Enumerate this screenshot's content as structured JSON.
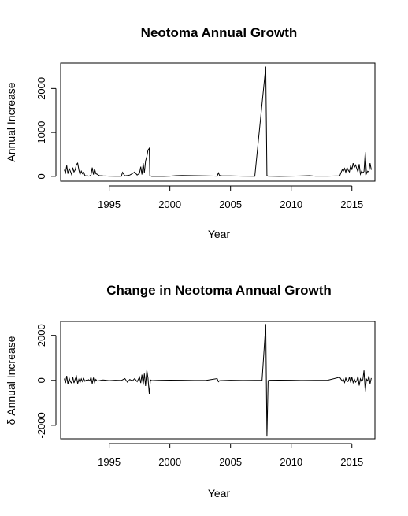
{
  "chart_data": [
    {
      "type": "line",
      "title": "Neotoma Annual Growth",
      "xlabel": "Year",
      "ylabel": "Annual Increase",
      "xlim": [
        1991,
        2016.9
      ],
      "ylim": [
        -110,
        2580
      ],
      "xticks": [
        1995,
        2000,
        2005,
        2010,
        2015
      ],
      "yticks": [
        0,
        1000,
        2000
      ],
      "grid": false,
      "series": [
        {
          "x": [
            1991.3,
            1991.4,
            1991.5,
            1991.6,
            1991.7,
            1991.8,
            1991.9,
            1992.0,
            1992.1,
            1992.2,
            1992.3,
            1992.4,
            1992.5,
            1992.6,
            1992.7,
            1992.8,
            1992.9,
            1993.0,
            1993.1,
            1993.2,
            1993.3,
            1993.4,
            1993.5,
            1993.6,
            1993.7,
            1993.8,
            1993.9,
            1994.0,
            1994.1,
            1994.2,
            1994.5,
            1995.0,
            1995.5,
            1996.0,
            1996.1,
            1996.3,
            1996.5,
            1996.7,
            1996.9,
            1997.1,
            1997.3,
            1997.5,
            1997.6,
            1997.7,
            1997.8,
            1997.9,
            1998.0,
            1998.1,
            1998.2,
            1998.3,
            1998.35,
            1998.5,
            1999.5,
            2000.0,
            2000.5,
            2001.0,
            2002.0,
            2003.0,
            2003.9,
            2004.0,
            2004.1,
            2004.3,
            2005.0,
            2006.0,
            2007.0,
            2007.9,
            2008.0,
            2008.1,
            2009.0,
            2010.0,
            2011.0,
            2011.5,
            2012.0,
            2013.0,
            2014.0,
            2014.2,
            2014.3,
            2014.4,
            2014.5,
            2014.6,
            2014.7,
            2014.8,
            2014.9,
            2015.0,
            2015.1,
            2015.2,
            2015.3,
            2015.4,
            2015.5,
            2015.6,
            2015.7,
            2015.8,
            2015.9,
            2016.0,
            2016.1,
            2016.2,
            2016.3,
            2016.4,
            2016.5,
            2016.6
          ],
          "y": [
            150,
            80,
            250,
            60,
            180,
            120,
            40,
            200,
            100,
            150,
            270,
            300,
            150,
            40,
            120,
            60,
            90,
            20,
            10,
            15,
            5,
            10,
            30,
            200,
            40,
            170,
            60,
            50,
            30,
            15,
            10,
            5,
            3,
            2,
            90,
            10,
            20,
            30,
            60,
            100,
            30,
            70,
            220,
            40,
            300,
            80,
            350,
            450,
            600,
            640,
            20,
            0,
            0,
            5,
            15,
            20,
            15,
            10,
            5,
            80,
            20,
            10,
            10,
            5,
            2,
            2500,
            20,
            5,
            0,
            5,
            10,
            15,
            5,
            5,
            10,
            150,
            120,
            180,
            90,
            200,
            140,
            100,
            250,
            150,
            300,
            200,
            260,
            180,
            100,
            280,
            50,
            120,
            80,
            110,
            550,
            60,
            120,
            100,
            300,
            150
          ]
        }
      ]
    },
    {
      "type": "line",
      "title": "Change in Neotoma Annual Growth",
      "xlabel": "Year",
      "ylabel": "δ Annual Increase",
      "xlim": [
        1991,
        2016.9
      ],
      "ylim": [
        -2600,
        2620
      ],
      "xticks": [
        1995,
        2000,
        2005,
        2010,
        2015
      ],
      "yticks": [
        -2000,
        0,
        2000
      ],
      "grid": false,
      "series": [
        {
          "x": [
            1991.3,
            1991.4,
            1991.5,
            1991.6,
            1991.7,
            1991.8,
            1991.9,
            1992.0,
            1992.1,
            1992.2,
            1992.3,
            1992.4,
            1992.5,
            1992.6,
            1992.7,
            1992.8,
            1992.9,
            1993.0,
            1993.1,
            1993.2,
            1993.3,
            1993.4,
            1993.5,
            1993.6,
            1993.7,
            1993.8,
            1993.9,
            1994.0,
            1994.5,
            1995.0,
            1995.5,
            1996.0,
            1996.3,
            1996.5,
            1996.7,
            1996.9,
            1997.1,
            1997.3,
            1997.5,
            1997.6,
            1997.7,
            1997.8,
            1997.9,
            1998.0,
            1998.1,
            1998.2,
            1998.3,
            1998.4,
            1998.5,
            1999.0,
            2000.0,
            2001.0,
            2002.0,
            2003.0,
            2003.9,
            2004.0,
            2004.1,
            2005.0,
            2006.0,
            2007.0,
            2007.6,
            2007.9,
            2008.0,
            2008.1,
            2008.2,
            2009.0,
            2010.0,
            2011.0,
            2012.0,
            2013.0,
            2014.0,
            2014.2,
            2014.3,
            2014.4,
            2014.5,
            2014.6,
            2014.7,
            2014.8,
            2014.9,
            2015.0,
            2015.1,
            2015.2,
            2015.3,
            2015.4,
            2015.5,
            2015.6,
            2015.7,
            2015.8,
            2015.9,
            2016.0,
            2016.1,
            2016.2,
            2016.3,
            2016.4,
            2016.5,
            2016.6
          ],
          "y": [
            80,
            -120,
            200,
            -180,
            100,
            -60,
            -120,
            150,
            -120,
            60,
            180,
            -150,
            40,
            -100,
            70,
            -50,
            80,
            -40,
            10,
            -10,
            30,
            -20,
            150,
            -150,
            120,
            -100,
            40,
            -30,
            20,
            -10,
            5,
            -5,
            80,
            -80,
            40,
            -30,
            80,
            -60,
            150,
            -120,
            250,
            -200,
            300,
            -250,
            450,
            100,
            -600,
            20,
            -10,
            0,
            10,
            5,
            -5,
            0,
            80,
            -60,
            -10,
            5,
            -5,
            0,
            0,
            2500,
            -2500,
            -10,
            5,
            10,
            5,
            -5,
            0,
            5,
            140,
            -30,
            60,
            -90,
            110,
            -60,
            -40,
            150,
            -100,
            150,
            -100,
            60,
            -80,
            -20,
            180,
            -230,
            70,
            -40,
            30,
            440,
            -490,
            60,
            -20,
            200,
            -150,
            100
          ]
        }
      ]
    }
  ]
}
